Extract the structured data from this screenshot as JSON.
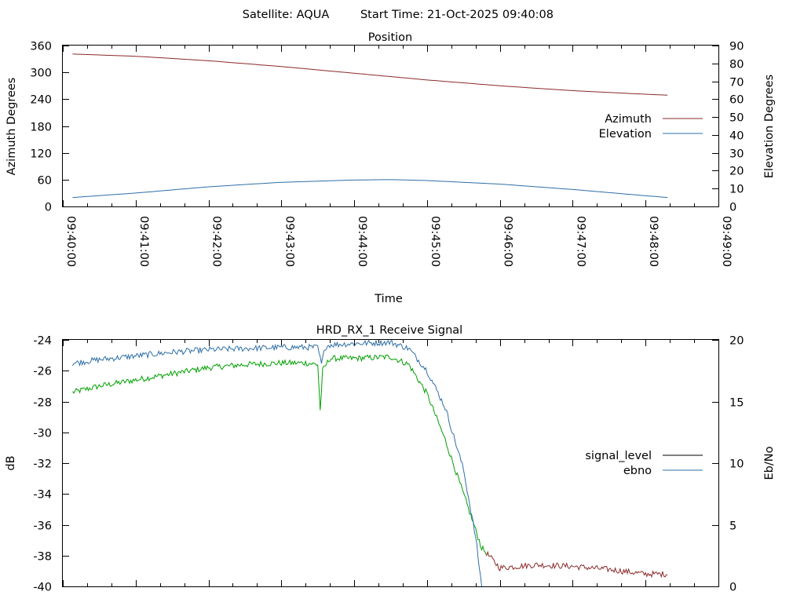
{
  "header": {
    "satellite": "Satellite: AQUA",
    "start_time": "Start Time: 21-Oct-2025 09:40:08"
  },
  "chart_data": [
    {
      "type": "line",
      "title": "Position",
      "xlabel": "Time",
      "ylabel": "Azimuth Degrees",
      "y2label": "Elevation Degrees",
      "xlim": [
        "09:40:00",
        "09:49:00"
      ],
      "ylim": [
        0,
        360
      ],
      "y2lim": [
        0,
        90
      ],
      "x_ticks": [
        "09:40:00",
        "09:41:00",
        "09:42:00",
        "09:43:00",
        "09:44:00",
        "09:45:00",
        "09:46:00",
        "09:47:00",
        "09:48:00",
        "09:49:00"
      ],
      "y_ticks": [
        0,
        60,
        120,
        180,
        240,
        300,
        360
      ],
      "y2_ticks": [
        0,
        10,
        20,
        30,
        40,
        50,
        60,
        70,
        80,
        90
      ],
      "legend_position": "right",
      "colors": {
        "Azimuth": "#8b2a2a",
        "Elevation": "#2e6fa6"
      },
      "series": [
        {
          "name": "Azimuth",
          "axis": "y",
          "x": [
            "09:40:08",
            "09:41:00",
            "09:42:00",
            "09:43:00",
            "09:44:00",
            "09:45:00",
            "09:46:00",
            "09:47:00",
            "09:48:00",
            "09:48:18"
          ],
          "values": [
            341,
            336,
            326,
            313,
            298,
            283,
            270,
            259,
            251,
            249
          ]
        },
        {
          "name": "Elevation",
          "axis": "y2",
          "x": [
            "09:40:08",
            "09:41:00",
            "09:42:00",
            "09:43:00",
            "09:44:00",
            "09:44:30",
            "09:45:00",
            "09:46:00",
            "09:47:00",
            "09:48:00",
            "09:48:18"
          ],
          "values": [
            5,
            7.5,
            11,
            13.5,
            14.8,
            15,
            14.5,
            12.5,
            9.5,
            6,
            5
          ]
        }
      ]
    },
    {
      "type": "line",
      "title": "HRD_RX_1 Receive Signal",
      "ylabel": "dB",
      "y2label": "Eb/No",
      "xlim": [
        "09:40:00",
        "09:49:00"
      ],
      "ylim": [
        -40,
        -24
      ],
      "y2lim": [
        0,
        20
      ],
      "y_ticks": [
        -40,
        -38,
        -36,
        -34,
        -32,
        -30,
        -28,
        -26,
        -24
      ],
      "y2_ticks": [
        0,
        5,
        10,
        15,
        20
      ],
      "legend_position": "right",
      "colors": {
        "signal_level": "#000000",
        "ebno": "#2e6fa6",
        "signal_fill_high": "#00a000",
        "signal_fill_low": "#8b2a2a"
      },
      "series": [
        {
          "name": "signal_level",
          "axis": "y",
          "x": [
            "09:40:08",
            "09:40:30",
            "09:41:00",
            "09:41:30",
            "09:42:00",
            "09:42:30",
            "09:43:00",
            "09:43:20",
            "09:43:30",
            "09:43:32",
            "09:43:34",
            "09:43:40",
            "09:44:00",
            "09:44:30",
            "09:44:45",
            "09:45:00",
            "09:45:15",
            "09:45:30",
            "09:45:45",
            "09:46:00",
            "09:46:30",
            "09:47:00",
            "09:47:30",
            "09:48:00",
            "09:48:18"
          ],
          "values": [
            -27.4,
            -27.0,
            -26.6,
            -26.2,
            -25.8,
            -25.6,
            -25.5,
            -25.5,
            -25.6,
            -28.6,
            -26.0,
            -25.2,
            -25.2,
            -25.1,
            -25.6,
            -27.5,
            -30.5,
            -34.0,
            -37.5,
            -38.8,
            -38.6,
            -38.7,
            -38.9,
            -39.2,
            -39.2
          ]
        },
        {
          "name": "ebno",
          "axis": "y2",
          "x": [
            "09:40:08",
            "09:40:30",
            "09:41:00",
            "09:41:30",
            "09:42:00",
            "09:42:30",
            "09:43:00",
            "09:43:20",
            "09:43:30",
            "09:43:33",
            "09:43:36",
            "09:43:40",
            "09:44:00",
            "09:44:30",
            "09:44:45",
            "09:45:00",
            "09:45:15",
            "09:45:30",
            "09:45:40",
            "09:45:45"
          ],
          "values": [
            18.1,
            18.4,
            18.7,
            19.0,
            19.2,
            19.3,
            19.4,
            19.4,
            19.4,
            18.0,
            19.4,
            19.6,
            19.7,
            19.8,
            19.3,
            17.5,
            14.5,
            9.5,
            4.0,
            0
          ]
        }
      ]
    }
  ]
}
